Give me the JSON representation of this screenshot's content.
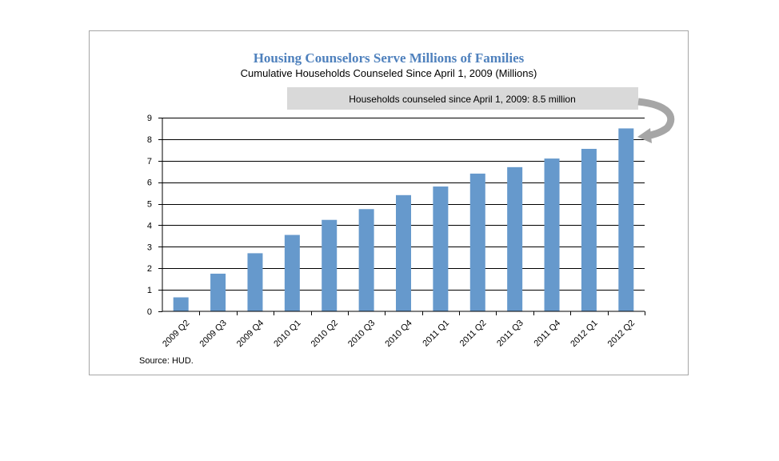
{
  "chart_data": {
    "type": "bar",
    "title": "Housing Counselors Serve Millions of Families",
    "subtitle": "Cumulative Households Counseled Since April 1, 2009 (Millions)",
    "categories": [
      "2009 Q2",
      "2009 Q3",
      "2009 Q4",
      "2010 Q1",
      "2010 Q2",
      "2010 Q3",
      "2010 Q4",
      "2011 Q1",
      "2011 Q2",
      "2011 Q3",
      "2011 Q4",
      "2012 Q1",
      "2012 Q2"
    ],
    "values": [
      0.65,
      1.75,
      2.7,
      3.55,
      4.25,
      4.75,
      5.4,
      5.8,
      6.4,
      6.7,
      7.1,
      7.55,
      8.5
    ],
    "ylim": [
      0,
      9
    ],
    "yticks": [
      0,
      1,
      2,
      3,
      4,
      5,
      6,
      7,
      8,
      9
    ],
    "grid": true,
    "bar_color": "#6699cc",
    "annotation": "Households counseled  since  April 1, 2009: 8.5 million",
    "source": "Source:  HUD."
  }
}
